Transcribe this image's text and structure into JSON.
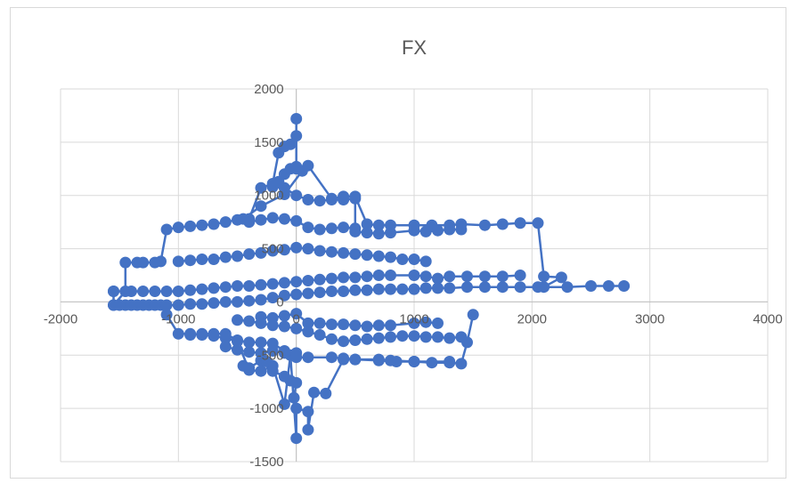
{
  "chart_data": {
    "type": "scatter",
    "title": "FX",
    "xlim": [
      -2000,
      4000
    ],
    "ylim": [
      -1500,
      2000
    ],
    "xticks": [
      -2000,
      -1000,
      0,
      1000,
      2000,
      3000,
      4000
    ],
    "yticks": [
      -1500,
      -1000,
      -500,
      0,
      500,
      1000,
      1500,
      2000
    ],
    "xtick_labels": [
      "-2000",
      "-1000",
      "0",
      "1000",
      "2000",
      "3000",
      "4000"
    ],
    "ytick_labels": [
      "-1500",
      "-1000",
      "-500",
      "0",
      "500",
      "1000",
      "1500",
      "2000"
    ],
    "grid": true,
    "legend": "none",
    "color": "#4472c4",
    "series": [
      {
        "points": [
          [
            -1550,
            100
          ],
          [
            -1550,
            -30
          ],
          [
            -1450,
            100
          ],
          [
            -1450,
            370
          ],
          [
            -1350,
            370
          ],
          [
            -1300,
            370
          ],
          [
            -1200,
            370
          ],
          [
            -1150,
            380
          ],
          [
            -1100,
            680
          ],
          [
            -1000,
            700
          ],
          [
            -900,
            710
          ],
          [
            -800,
            720
          ],
          [
            -700,
            730
          ],
          [
            -600,
            750
          ],
          [
            -500,
            770
          ],
          [
            -400,
            780
          ],
          [
            -300,
            1070
          ],
          [
            -200,
            1110
          ],
          [
            -150,
            1400
          ],
          [
            -100,
            1460
          ],
          [
            -50,
            1480
          ],
          [
            0,
            1560
          ],
          [
            0,
            1720
          ],
          [
            0,
            1270
          ],
          [
            100,
            1280
          ],
          [
            300,
            970
          ],
          [
            400,
            990
          ],
          [
            500,
            990
          ],
          [
            600,
            730
          ],
          [
            700,
            720
          ],
          [
            800,
            720
          ],
          [
            1000,
            720
          ],
          [
            1150,
            720
          ],
          [
            1300,
            720
          ],
          [
            1400,
            730
          ],
          [
            1600,
            720
          ],
          [
            1750,
            730
          ],
          [
            1900,
            740
          ],
          [
            2050,
            740
          ],
          [
            2100,
            240
          ],
          [
            2250,
            230
          ],
          [
            2100,
            140
          ],
          [
            2300,
            140
          ],
          [
            2500,
            150
          ],
          [
            2650,
            150
          ],
          [
            2780,
            150
          ]
        ]
      },
      {
        "points": [
          [
            -1550,
            -30
          ],
          [
            -1450,
            -30
          ],
          [
            -1350,
            -30
          ],
          [
            -1250,
            -30
          ],
          [
            -1150,
            -30
          ],
          [
            -1100,
            -120
          ],
          [
            -1000,
            -300
          ],
          [
            -900,
            -300
          ],
          [
            -800,
            -310
          ],
          [
            -700,
            -320
          ],
          [
            -600,
            -340
          ],
          [
            -500,
            -370
          ],
          [
            -400,
            -640
          ],
          [
            -300,
            -650
          ],
          [
            -200,
            -600
          ],
          [
            -100,
            -960
          ],
          [
            -50,
            -500
          ],
          [
            0,
            -1280
          ],
          [
            0,
            -1000
          ],
          [
            100,
            -1030
          ],
          [
            100,
            -1200
          ],
          [
            150,
            -850
          ],
          [
            250,
            -860
          ],
          [
            400,
            -540
          ],
          [
            500,
            -540
          ],
          [
            700,
            -550
          ],
          [
            850,
            -560
          ],
          [
            1000,
            -560
          ],
          [
            1150,
            -570
          ],
          [
            1300,
            -570
          ],
          [
            1400,
            -580
          ],
          [
            1450,
            -380
          ],
          [
            1500,
            -120
          ]
        ]
      },
      {
        "points": [
          [
            -1550,
            100
          ],
          [
            -1400,
            100
          ],
          [
            -1300,
            100
          ],
          [
            -1200,
            100
          ],
          [
            -1100,
            100
          ],
          [
            -1000,
            100
          ],
          [
            -900,
            110
          ],
          [
            -800,
            120
          ],
          [
            -700,
            130
          ],
          [
            -600,
            140
          ],
          [
            -500,
            150
          ],
          [
            -400,
            150
          ],
          [
            -300,
            160
          ],
          [
            -200,
            170
          ],
          [
            -100,
            180
          ],
          [
            0,
            190
          ],
          [
            100,
            200
          ],
          [
            200,
            210
          ],
          [
            300,
            220
          ],
          [
            400,
            230
          ],
          [
            500,
            230
          ],
          [
            600,
            240
          ],
          [
            700,
            250
          ],
          [
            800,
            250
          ],
          [
            1000,
            250
          ],
          [
            1100,
            240
          ],
          [
            1200,
            220
          ],
          [
            1300,
            240
          ],
          [
            1450,
            240
          ],
          [
            1600,
            240
          ],
          [
            1750,
            240
          ],
          [
            1900,
            250
          ]
        ]
      },
      {
        "points": [
          [
            -1500,
            -30
          ],
          [
            -1400,
            -30
          ],
          [
            -1300,
            -30
          ],
          [
            -1200,
            -30
          ],
          [
            -1100,
            -30
          ],
          [
            -1000,
            -30
          ],
          [
            -900,
            -20
          ],
          [
            -800,
            -20
          ],
          [
            -700,
            -10
          ],
          [
            -600,
            0
          ],
          [
            -500,
            0
          ],
          [
            -400,
            10
          ],
          [
            -300,
            20
          ],
          [
            -200,
            40
          ],
          [
            -100,
            60
          ],
          [
            0,
            70
          ],
          [
            100,
            80
          ],
          [
            200,
            90
          ],
          [
            300,
            100
          ],
          [
            400,
            100
          ],
          [
            500,
            110
          ],
          [
            600,
            110
          ],
          [
            700,
            120
          ],
          [
            800,
            120
          ],
          [
            900,
            120
          ],
          [
            1000,
            120
          ],
          [
            1100,
            130
          ],
          [
            1200,
            130
          ],
          [
            1300,
            130
          ],
          [
            1450,
            140
          ],
          [
            1600,
            140
          ],
          [
            1750,
            140
          ],
          [
            1900,
            140
          ],
          [
            2050,
            140
          ]
        ]
      },
      {
        "points": [
          [
            -900,
            -310
          ],
          [
            -800,
            -300
          ],
          [
            -700,
            -300
          ],
          [
            -600,
            -300
          ],
          [
            -500,
            -360
          ],
          [
            -400,
            -380
          ],
          [
            -300,
            -380
          ],
          [
            -200,
            -390
          ],
          [
            -100,
            -460
          ],
          [
            0,
            -520
          ],
          [
            100,
            -520
          ],
          [
            300,
            -520
          ],
          [
            400,
            -530
          ],
          [
            500,
            -540
          ],
          [
            700,
            -540
          ],
          [
            800,
            -550
          ],
          [
            1000,
            -560
          ],
          [
            1300,
            -560
          ]
        ]
      },
      {
        "points": [
          [
            -1000,
            380
          ],
          [
            -900,
            390
          ],
          [
            -800,
            400
          ],
          [
            -700,
            400
          ],
          [
            -600,
            420
          ],
          [
            -500,
            430
          ],
          [
            -400,
            450
          ],
          [
            -300,
            460
          ],
          [
            -200,
            480
          ],
          [
            -100,
            490
          ],
          [
            0,
            510
          ],
          [
            100,
            500
          ],
          [
            200,
            480
          ],
          [
            300,
            470
          ],
          [
            400,
            460
          ],
          [
            500,
            450
          ],
          [
            600,
            440
          ],
          [
            700,
            430
          ],
          [
            800,
            420
          ],
          [
            900,
            400
          ],
          [
            1000,
            400
          ],
          [
            1100,
            380
          ]
        ]
      },
      {
        "points": [
          [
            -200,
            1080
          ],
          [
            -100,
            1070
          ],
          [
            0,
            1000
          ],
          [
            100,
            960
          ],
          [
            200,
            950
          ],
          [
            300,
            960
          ],
          [
            400,
            960
          ],
          [
            500,
            970
          ],
          [
            500,
            660
          ],
          [
            600,
            650
          ],
          [
            700,
            640
          ],
          [
            800,
            650
          ],
          [
            1000,
            670
          ],
          [
            1100,
            660
          ],
          [
            1200,
            670
          ],
          [
            1300,
            680
          ],
          [
            1400,
            680
          ]
        ]
      },
      {
        "points": [
          [
            -400,
            750
          ],
          [
            -300,
            770
          ],
          [
            -200,
            790
          ],
          [
            -100,
            780
          ],
          [
            0,
            760
          ],
          [
            100,
            700
          ],
          [
            200,
            680
          ],
          [
            300,
            690
          ],
          [
            400,
            700
          ],
          [
            500,
            690
          ]
        ]
      },
      {
        "points": [
          [
            -300,
            -140
          ],
          [
            -200,
            -150
          ],
          [
            -100,
            -130
          ],
          [
            0,
            -110
          ],
          [
            100,
            -200
          ],
          [
            200,
            -200
          ],
          [
            300,
            -210
          ],
          [
            400,
            -210
          ],
          [
            500,
            -220
          ],
          [
            600,
            -230
          ],
          [
            700,
            -220
          ],
          [
            800,
            -220
          ],
          [
            1000,
            -200
          ],
          [
            1100,
            -190
          ],
          [
            1200,
            -200
          ]
        ]
      },
      {
        "points": [
          [
            -500,
            -170
          ],
          [
            -400,
            -180
          ],
          [
            -300,
            -200
          ],
          [
            -200,
            -220
          ],
          [
            -100,
            -230
          ],
          [
            0,
            -250
          ],
          [
            100,
            -280
          ],
          [
            200,
            -310
          ],
          [
            300,
            -350
          ],
          [
            400,
            -370
          ],
          [
            500,
            -360
          ],
          [
            600,
            -350
          ],
          [
            700,
            -340
          ],
          [
            800,
            -330
          ],
          [
            900,
            -320
          ],
          [
            1000,
            -320
          ],
          [
            1100,
            -330
          ],
          [
            1200,
            -330
          ],
          [
            1300,
            -340
          ],
          [
            1400,
            -330
          ]
        ]
      },
      {
        "points": [
          [
            -450,
            -600
          ],
          [
            -400,
            -620
          ],
          [
            -300,
            -550
          ],
          [
            -250,
            -560
          ],
          [
            -200,
            -650
          ],
          [
            -100,
            -700
          ],
          [
            -50,
            -740
          ],
          [
            0,
            -760
          ],
          [
            -20,
            -900
          ]
        ]
      },
      {
        "points": [
          [
            -150,
            1130
          ],
          [
            -100,
            1200
          ],
          [
            -50,
            1250
          ],
          [
            0,
            1250
          ],
          [
            50,
            1230
          ],
          [
            -100,
            1010
          ],
          [
            -300,
            900
          ],
          [
            -450,
            780
          ]
        ]
      },
      {
        "points": [
          [
            -600,
            -420
          ],
          [
            -500,
            -450
          ],
          [
            -400,
            -470
          ],
          [
            -300,
            -480
          ],
          [
            -200,
            -460
          ],
          [
            -100,
            -480
          ],
          [
            0,
            -480
          ]
        ]
      }
    ]
  }
}
